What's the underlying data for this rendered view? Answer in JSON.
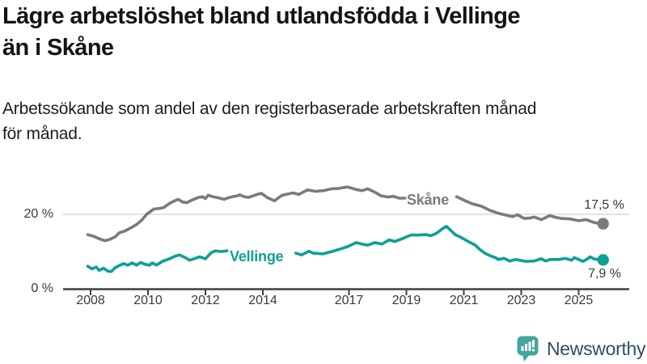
{
  "title": {
    "line1": "Lägre arbetslöshet bland utlandsfödda i Vellinge",
    "line2": "än i Skåne"
  },
  "subtitle": {
    "line1": "Arbetssökande som andel av den registerbaserade arbetskraften månad",
    "line2": "för månad."
  },
  "chart_data": {
    "type": "line",
    "x_axis": {
      "tick_years": [
        2008,
        2010,
        2012,
        2014,
        2017,
        2019,
        2021,
        2023,
        2025
      ],
      "range": [
        2007.9,
        2025.85
      ]
    },
    "y_axis": {
      "tick_labels": [
        "0 %",
        "20 %"
      ],
      "tick_values": [
        0,
        20
      ],
      "range": [
        0,
        30
      ],
      "gridline_at": 20,
      "unit": "percent"
    },
    "series": [
      {
        "name": "Skåne",
        "color": "#7b7b7b",
        "end_label": "17,5 %",
        "end_value": 17.5,
        "label_gap": [
          2019.0,
          2020.72
        ],
        "points": [
          [
            2007.9,
            14.6
          ],
          [
            2008.1,
            14.2
          ],
          [
            2008.3,
            13.5
          ],
          [
            2008.5,
            13.0
          ],
          [
            2008.65,
            13.3
          ],
          [
            2008.85,
            14.0
          ],
          [
            2009.0,
            15.1
          ],
          [
            2009.2,
            15.6
          ],
          [
            2009.4,
            16.4
          ],
          [
            2009.6,
            17.3
          ],
          [
            2009.8,
            18.6
          ],
          [
            2009.95,
            20.0
          ],
          [
            2010.2,
            21.4
          ],
          [
            2010.4,
            21.6
          ],
          [
            2010.55,
            21.8
          ],
          [
            2010.75,
            22.9
          ],
          [
            2010.9,
            23.5
          ],
          [
            2011.05,
            24.0
          ],
          [
            2011.2,
            23.3
          ],
          [
            2011.35,
            23.1
          ],
          [
            2011.5,
            23.7
          ],
          [
            2011.75,
            24.5
          ],
          [
            2011.9,
            24.7
          ],
          [
            2012.0,
            24.2
          ],
          [
            2012.1,
            25.1
          ],
          [
            2012.25,
            24.7
          ],
          [
            2012.4,
            24.5
          ],
          [
            2012.55,
            24.2
          ],
          [
            2012.65,
            24.0
          ],
          [
            2012.8,
            24.4
          ],
          [
            2012.95,
            24.7
          ],
          [
            2013.1,
            24.9
          ],
          [
            2013.2,
            25.2
          ],
          [
            2013.35,
            24.7
          ],
          [
            2013.5,
            24.5
          ],
          [
            2013.65,
            24.9
          ],
          [
            2013.8,
            25.3
          ],
          [
            2013.95,
            25.6
          ],
          [
            2014.15,
            24.5
          ],
          [
            2014.4,
            23.6
          ],
          [
            2014.65,
            25.0
          ],
          [
            2014.8,
            25.3
          ],
          [
            2015.05,
            25.7
          ],
          [
            2015.25,
            25.3
          ],
          [
            2015.55,
            26.5
          ],
          [
            2015.85,
            26.1
          ],
          [
            2016.1,
            26.3
          ],
          [
            2016.4,
            26.8
          ],
          [
            2016.65,
            26.9
          ],
          [
            2016.95,
            27.3
          ],
          [
            2017.25,
            26.6
          ],
          [
            2017.45,
            26.3
          ],
          [
            2017.65,
            26.8
          ],
          [
            2017.95,
            25.7
          ],
          [
            2018.1,
            25.0
          ],
          [
            2018.35,
            24.6
          ],
          [
            2018.55,
            24.8
          ],
          [
            2018.75,
            24.3
          ],
          [
            2018.95,
            24.3
          ],
          [
            2020.75,
            24.7
          ],
          [
            2021.05,
            23.6
          ],
          [
            2021.3,
            22.8
          ],
          [
            2021.6,
            22.2
          ],
          [
            2021.9,
            21.1
          ],
          [
            2022.15,
            20.4
          ],
          [
            2022.45,
            19.8
          ],
          [
            2022.7,
            19.4
          ],
          [
            2022.87,
            19.9
          ],
          [
            2023.1,
            18.9
          ],
          [
            2023.3,
            19.0
          ],
          [
            2023.45,
            19.3
          ],
          [
            2023.7,
            18.6
          ],
          [
            2024.0,
            19.7
          ],
          [
            2024.15,
            19.3
          ],
          [
            2024.4,
            18.9
          ],
          [
            2024.7,
            18.8
          ],
          [
            2025.0,
            18.3
          ],
          [
            2025.25,
            18.6
          ],
          [
            2025.55,
            17.8
          ],
          [
            2025.85,
            17.5
          ]
        ]
      },
      {
        "name": "Vellinge",
        "color": "#0da096",
        "end_label": "7,9 %",
        "end_value": 7.9,
        "label_gap": [
          2012.8,
          2015.1
        ],
        "points": [
          [
            2007.9,
            6.2
          ],
          [
            2008.05,
            5.5
          ],
          [
            2008.2,
            6.0
          ],
          [
            2008.3,
            5.1
          ],
          [
            2008.45,
            5.7
          ],
          [
            2008.6,
            4.9
          ],
          [
            2008.72,
            4.8
          ],
          [
            2008.85,
            5.8
          ],
          [
            2009.0,
            6.4
          ],
          [
            2009.15,
            6.9
          ],
          [
            2009.3,
            6.5
          ],
          [
            2009.45,
            7.1
          ],
          [
            2009.6,
            6.5
          ],
          [
            2009.75,
            7.2
          ],
          [
            2009.9,
            6.7
          ],
          [
            2010.05,
            6.5
          ],
          [
            2010.15,
            7.1
          ],
          [
            2010.3,
            6.5
          ],
          [
            2010.5,
            7.5
          ],
          [
            2010.75,
            8.2
          ],
          [
            2010.95,
            8.9
          ],
          [
            2011.1,
            9.2
          ],
          [
            2011.3,
            8.5
          ],
          [
            2011.45,
            7.8
          ],
          [
            2011.6,
            8.2
          ],
          [
            2011.8,
            8.7
          ],
          [
            2012.0,
            8.2
          ],
          [
            2012.2,
            9.8
          ],
          [
            2012.35,
            10.3
          ],
          [
            2012.55,
            10.1
          ],
          [
            2012.75,
            10.3
          ],
          [
            2015.15,
            9.7
          ],
          [
            2015.35,
            9.2
          ],
          [
            2015.6,
            10.2
          ],
          [
            2015.75,
            9.7
          ],
          [
            2016.1,
            9.5
          ],
          [
            2016.4,
            10.1
          ],
          [
            2016.7,
            10.8
          ],
          [
            2016.95,
            11.4
          ],
          [
            2017.25,
            12.5
          ],
          [
            2017.45,
            12.1
          ],
          [
            2017.65,
            11.8
          ],
          [
            2017.9,
            12.5
          ],
          [
            2018.15,
            12.1
          ],
          [
            2018.4,
            13.2
          ],
          [
            2018.6,
            12.8
          ],
          [
            2018.85,
            13.5
          ],
          [
            2019.15,
            14.5
          ],
          [
            2019.4,
            14.5
          ],
          [
            2019.7,
            14.6
          ],
          [
            2019.85,
            14.3
          ],
          [
            2020.05,
            15.0
          ],
          [
            2020.3,
            16.4
          ],
          [
            2020.4,
            16.8
          ],
          [
            2020.55,
            15.7
          ],
          [
            2020.7,
            14.6
          ],
          [
            2020.9,
            13.9
          ],
          [
            2021.15,
            12.8
          ],
          [
            2021.4,
            11.8
          ],
          [
            2021.55,
            10.7
          ],
          [
            2021.75,
            9.6
          ],
          [
            2021.95,
            8.9
          ],
          [
            2022.1,
            8.5
          ],
          [
            2022.2,
            8.0
          ],
          [
            2022.4,
            8.3
          ],
          [
            2022.6,
            7.6
          ],
          [
            2022.8,
            8.0
          ],
          [
            2022.95,
            7.8
          ],
          [
            2023.15,
            7.5
          ],
          [
            2023.45,
            7.6
          ],
          [
            2023.7,
            8.2
          ],
          [
            2023.85,
            7.6
          ],
          [
            2024.0,
            8.0
          ],
          [
            2024.3,
            8.0
          ],
          [
            2024.55,
            8.3
          ],
          [
            2024.75,
            7.8
          ],
          [
            2024.85,
            8.5
          ],
          [
            2025.0,
            8.0
          ],
          [
            2025.15,
            7.5
          ],
          [
            2025.3,
            8.1
          ],
          [
            2025.4,
            8.7
          ],
          [
            2025.55,
            8.1
          ],
          [
            2025.85,
            7.9
          ]
        ]
      }
    ],
    "grid_color": "#d8d8d8",
    "axis_color": "#3f3f3f"
  },
  "logo": {
    "text": "Newsworthy",
    "icon": "newsworthy-bar-chart-bubble",
    "icon_color": "#44a59d",
    "text_color": "#2c4d6e"
  }
}
